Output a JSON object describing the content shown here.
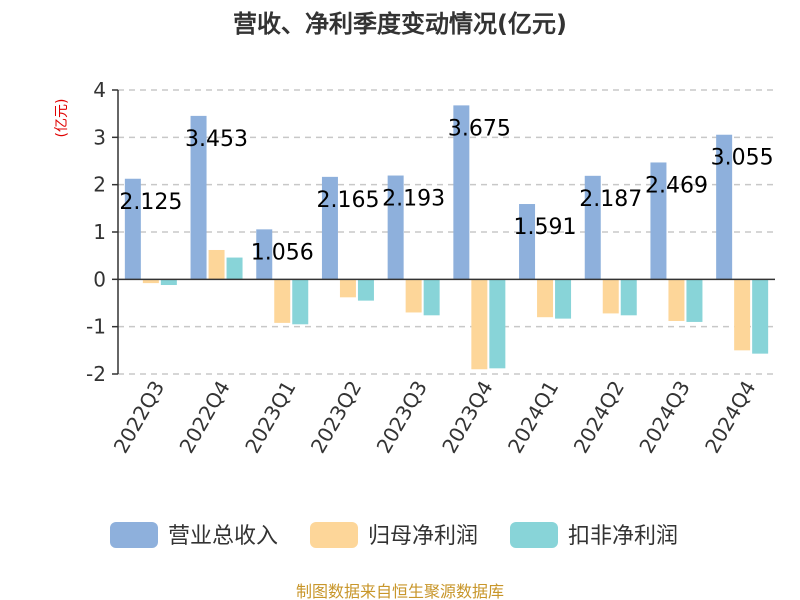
{
  "chart_data": {
    "type": "bar",
    "title": "营收、净利季度变动情况(亿元)",
    "ylabel": "(亿元)",
    "ylim": [
      -2,
      4
    ],
    "yticks": [
      4,
      3,
      2,
      1,
      0,
      -1,
      -2
    ],
    "categories": [
      "2022Q3",
      "2022Q4",
      "2023Q1",
      "2023Q2",
      "2023Q3",
      "2023Q4",
      "2024Q1",
      "2024Q2",
      "2024Q3",
      "2024Q4"
    ],
    "series": [
      {
        "name": "营业总收入",
        "color": "#8eb0dc",
        "values": [
          2.125,
          3.453,
          1.056,
          2.165,
          2.193,
          3.675,
          1.591,
          2.187,
          2.469,
          3.055
        ]
      },
      {
        "name": "归母净利润",
        "color": "#fdd699",
        "values": [
          -0.08,
          0.62,
          -0.92,
          -0.38,
          -0.7,
          -1.9,
          -0.8,
          -0.72,
          -0.88,
          -1.5
        ]
      },
      {
        "name": "扣非净利润",
        "color": "#88d4d8",
        "values": [
          -0.12,
          0.46,
          -0.95,
          -0.45,
          -0.76,
          -1.88,
          -0.83,
          -0.76,
          -0.9,
          -1.57
        ]
      }
    ],
    "data_labels": [
      "2.125",
      "3.453",
      "1.056",
      "2.165",
      "2.193",
      "3.675",
      "1.591",
      "2.187",
      "2.469",
      "3.055"
    ],
    "grid": true,
    "legend_position": "bottom"
  },
  "source": "制图数据来自恒生聚源数据库"
}
